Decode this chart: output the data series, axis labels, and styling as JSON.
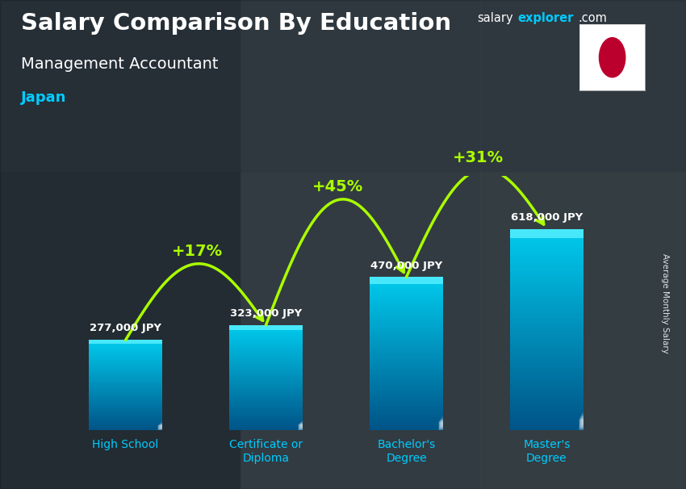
{
  "title_line1": "Salary Comparison By Education",
  "subtitle": "Management Accountant",
  "country": "Japan",
  "ylabel": "Average Monthly Salary",
  "categories": [
    "High School",
    "Certificate or\nDiploma",
    "Bachelor's\nDegree",
    "Master's\nDegree"
  ],
  "values": [
    277000,
    323000,
    470000,
    618000
  ],
  "value_labels": [
    "277,000 JPY",
    "323,000 JPY",
    "470,000 JPY",
    "618,000 JPY"
  ],
  "pct_labels": [
    "+17%",
    "+45%",
    "+31%"
  ],
  "bar_color_top": "#00d8f0",
  "bar_color_mid": "#00aadd",
  "bar_color_bottom": "#006699",
  "title_color": "#ffffff",
  "subtitle_color": "#ffffff",
  "country_color": "#00ccff",
  "value_label_color": "#ffffff",
  "pct_color": "#aaff00",
  "xlabel_color": "#00ccff",
  "arrow_color": "#aaff00",
  "bg_color": "#3a4a55",
  "ymax": 780000,
  "bar_width": 0.52,
  "fig_width": 8.5,
  "fig_height": 6.06,
  "dpi": 100
}
